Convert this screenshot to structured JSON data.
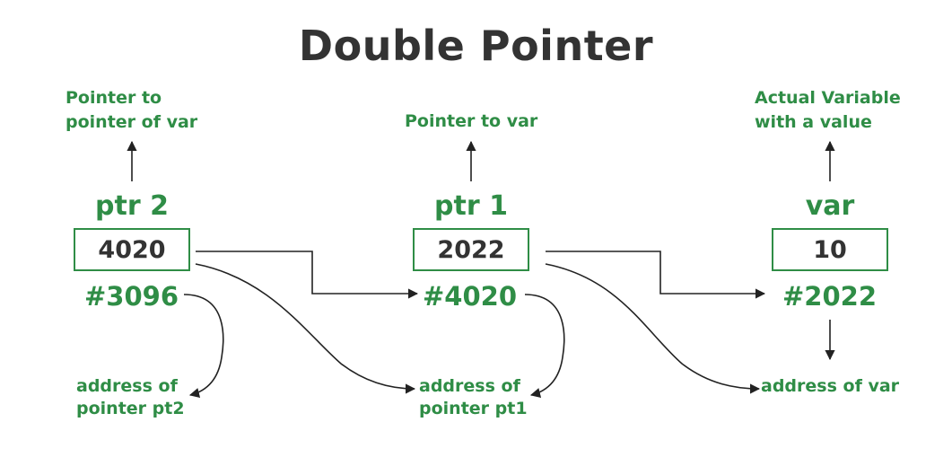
{
  "title": "Double Pointer",
  "colors": {
    "accent": "#2f8d46",
    "text": "#333333",
    "arrow": "#222222"
  },
  "nodes": {
    "ptr2": {
      "description_line1": "Pointer to",
      "description_line2": "pointer of var",
      "name": "ptr 2",
      "value": "4020",
      "address": "#3096",
      "note_line1": "address of",
      "note_line2": "pointer pt2"
    },
    "ptr1": {
      "description_line1": "Pointer to var",
      "name": "ptr 1",
      "value": "2022",
      "address": "#4020",
      "note_line1": "address of",
      "note_line2": "pointer pt1"
    },
    "var": {
      "description_line1": "Actual Variable",
      "description_line2": "with a value",
      "name": "var",
      "value": "10",
      "address": "#2022",
      "note_line1": "address of var"
    }
  }
}
